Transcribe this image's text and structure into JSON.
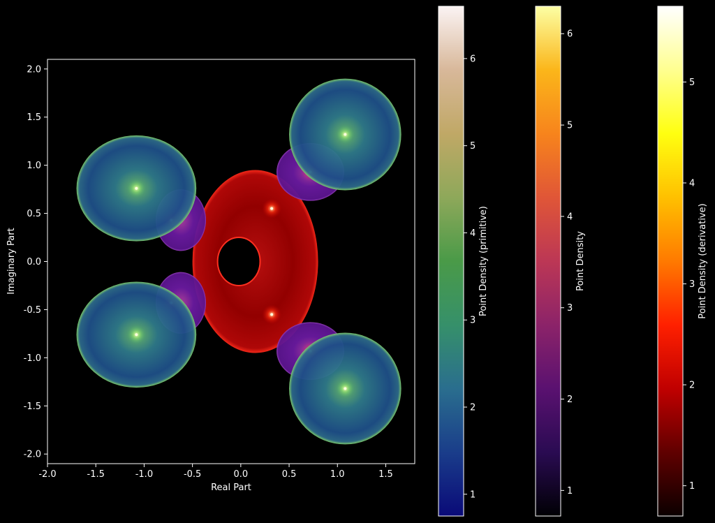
{
  "chart_data": {
    "type": "scatter",
    "title": "",
    "xlabel": "Real Part",
    "ylabel": "Imaginary Part",
    "xlim": [
      -2.0,
      1.8
    ],
    "ylim": [
      -2.1,
      2.1
    ],
    "xticks": [
      "-2.0",
      "-1.5",
      "-1.0",
      "-0.5",
      "0.0",
      "0.5",
      "1.0",
      "1.5"
    ],
    "xtick_values": [
      -2.0,
      -1.5,
      -1.0,
      -0.5,
      0.0,
      0.5,
      1.0,
      1.5
    ],
    "yticks": [
      "-2.0",
      "-1.5",
      "-1.0",
      "-0.5",
      "0.0",
      "0.5",
      "1.0",
      "1.5",
      "2.0"
    ],
    "ytick_values": [
      -2.0,
      -1.5,
      -1.0,
      -0.5,
      0.0,
      0.5,
      1.0,
      1.5,
      2.0
    ],
    "grid": false,
    "background": "#000000",
    "series": [
      {
        "colormap": "gist_earth",
        "regions": [
          {
            "cx": -1.08,
            "cy": 0.76,
            "rx": 0.62,
            "ry": 0.55
          },
          {
            "cx": -1.08,
            "cy": -0.76,
            "rx": 0.62,
            "ry": 0.55
          },
          {
            "cx": 1.08,
            "cy": 1.32,
            "rx": 0.58,
            "ry": 0.58
          },
          {
            "cx": 1.08,
            "cy": -1.32,
            "rx": 0.58,
            "ry": 0.58
          }
        ],
        "bright_points": [
          [
            -1.08,
            0.76
          ],
          [
            -1.08,
            -0.76
          ],
          [
            1.08,
            1.32
          ],
          [
            1.08,
            -1.32
          ]
        ]
      },
      {
        "colormap": "inferno",
        "regions": [
          {
            "cx": -0.62,
            "cy": 0.43,
            "rx": 0.26,
            "ry": 0.32
          },
          {
            "cx": -0.62,
            "cy": -0.43,
            "rx": 0.26,
            "ry": 0.32
          },
          {
            "cx": 0.72,
            "cy": 0.93,
            "rx": 0.35,
            "ry": 0.3
          },
          {
            "cx": 0.72,
            "cy": -0.93,
            "rx": 0.35,
            "ry": 0.3
          }
        ],
        "bright_points": [
          [
            -0.72,
            0.43
          ],
          [
            -0.72,
            -0.43
          ],
          [
            0.72,
            0.93
          ],
          [
            0.72,
            -0.93
          ]
        ]
      },
      {
        "colormap": "hot",
        "regions": [
          {
            "cx": 0.15,
            "cy": 0.0,
            "rx": 0.65,
            "ry": 0.95
          }
        ],
        "bright_points": [
          [
            0.32,
            0.55
          ],
          [
            0.32,
            -0.55
          ]
        ],
        "hole": {
          "cx": -0.02,
          "cy": 0.0,
          "rx": 0.22,
          "ry": 0.25
        }
      }
    ],
    "colorbars": [
      {
        "label": "Point Density (primitive)",
        "ticks": [
          "1",
          "2",
          "3",
          "4",
          "5",
          "6"
        ],
        "tick_values": [
          1,
          2,
          3,
          4,
          5,
          6
        ],
        "vmin": 0.75,
        "vmax": 6.6,
        "colors": [
          "#0a0a78",
          "#1a3d8a",
          "#2a6e8e",
          "#36906a",
          "#4a9a48",
          "#8ea85a",
          "#c0a866",
          "#d8b89a",
          "#fbf3f3"
        ]
      },
      {
        "label": "Point Density",
        "ticks": [
          "1",
          "2",
          "3",
          "4",
          "5",
          "6"
        ],
        "tick_values": [
          1,
          2,
          3,
          4,
          5,
          6
        ],
        "vmin": 0.72,
        "vmax": 6.3,
        "colors": [
          "#000004",
          "#2a0b52",
          "#5a1170",
          "#8c2369",
          "#bc3755",
          "#e05637",
          "#f7841c",
          "#fbb61a",
          "#fcffa4"
        ]
      },
      {
        "label": "Point Density (derivative)",
        "ticks": [
          "1",
          "2",
          "3",
          "4",
          "5"
        ],
        "tick_values": [
          1,
          2,
          3,
          4,
          5
        ],
        "vmin": 0.7,
        "vmax": 5.75,
        "colors": [
          "#0b0000",
          "#600000",
          "#c00000",
          "#ff2000",
          "#ff7a00",
          "#ffc000",
          "#ffff10",
          "#ffff90",
          "#ffffff"
        ]
      }
    ]
  }
}
